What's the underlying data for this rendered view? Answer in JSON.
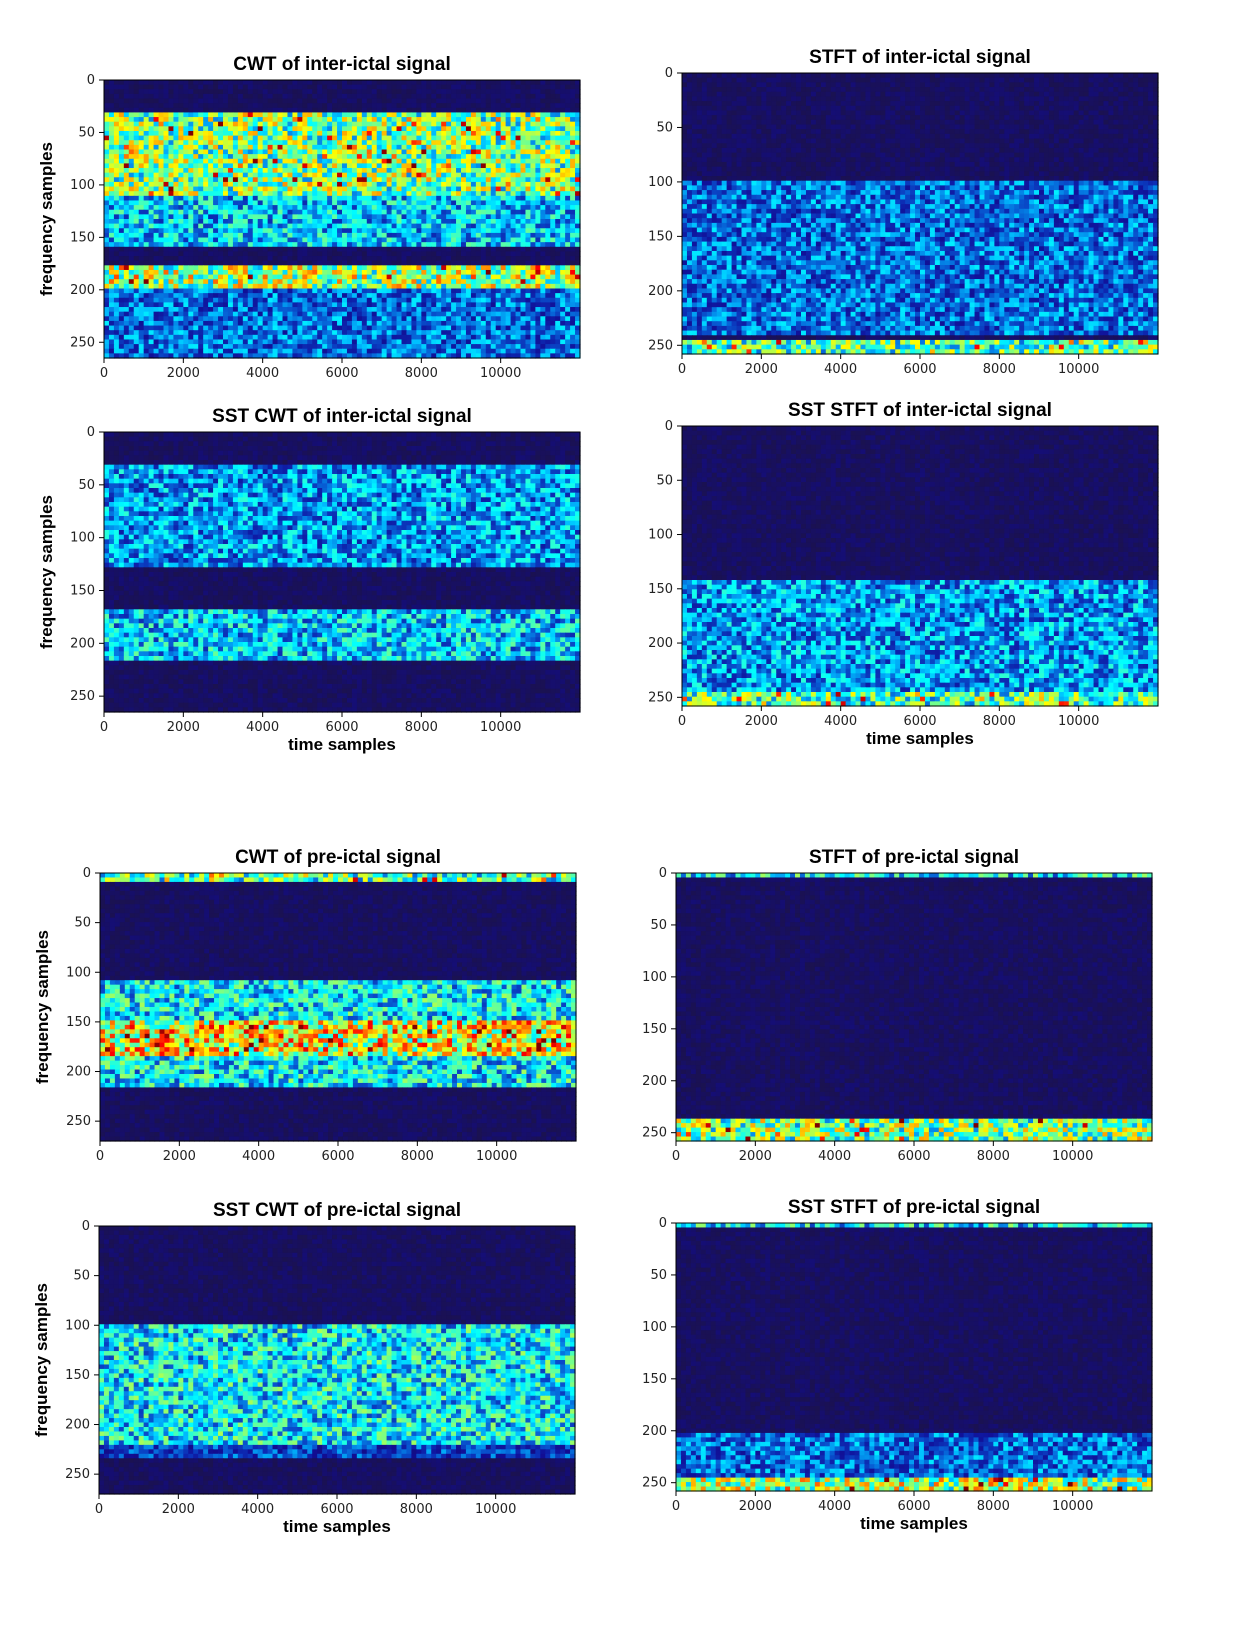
{
  "chart_data": [
    {
      "type": "heatmap",
      "id": "p0",
      "method": "CWT",
      "title": "CWT of inter-ictal signal",
      "ylabel": "frequency samples",
      "xlabel": "",
      "xlim": [
        0,
        12000
      ],
      "ylim": [
        265,
        0
      ],
      "xticks": [
        "0",
        "2000",
        "4000",
        "6000",
        "8000",
        "10000"
      ],
      "yticks": [
        "0",
        "50",
        "100",
        "150",
        "200",
        "250"
      ],
      "colormap": "jet",
      "bands": [
        {
          "freq_range": [
            30,
            110
          ],
          "level": 0.6
        },
        {
          "freq_range": [
            110,
            160
          ],
          "level": 0.4
        },
        {
          "freq_range": [
            175,
            200
          ],
          "level": 0.65
        },
        {
          "freq_range": [
            200,
            265
          ],
          "level": 0.3
        }
      ]
    },
    {
      "type": "heatmap",
      "id": "p1",
      "method": "STFT",
      "title": "STFT of inter-ictal signal",
      "ylabel": "",
      "xlabel": "",
      "xlim": [
        0,
        12000
      ],
      "ylim": [
        258,
        0
      ],
      "xticks": [
        "0",
        "2000",
        "4000",
        "6000",
        "8000",
        "10000"
      ],
      "yticks": [
        "0",
        "50",
        "100",
        "150",
        "200",
        "250"
      ],
      "colormap": "jet",
      "bands": [
        {
          "freq_range": [
            100,
            240
          ],
          "level": 0.3
        },
        {
          "freq_range": [
            245,
            258
          ],
          "level": 0.55
        }
      ]
    },
    {
      "type": "heatmap",
      "id": "p2",
      "method": "SST CWT",
      "title": "SST CWT of inter-ictal signal",
      "ylabel": "frequency samples",
      "xlabel": "time samples",
      "xlim": [
        0,
        12000
      ],
      "ylim": [
        265,
        0
      ],
      "xticks": [
        "0",
        "2000",
        "4000",
        "6000",
        "8000",
        "10000"
      ],
      "yticks": [
        "0",
        "50",
        "100",
        "150",
        "200",
        "250"
      ],
      "colormap": "jet",
      "bands": [
        {
          "freq_range": [
            30,
            130
          ],
          "level": 0.35
        },
        {
          "freq_range": [
            170,
            215
          ],
          "level": 0.4
        }
      ]
    },
    {
      "type": "heatmap",
      "id": "p3",
      "method": "SST STFT",
      "title": "SST STFT of inter-ictal signal",
      "ylabel": "",
      "xlabel": "time samples",
      "xlim": [
        0,
        12000
      ],
      "ylim": [
        258,
        0
      ],
      "xticks": [
        "0",
        "2000",
        "4000",
        "6000",
        "8000",
        "10000"
      ],
      "yticks": [
        "0",
        "50",
        "100",
        "150",
        "200",
        "250"
      ],
      "colormap": "jet",
      "bands": [
        {
          "freq_range": [
            140,
            245
          ],
          "level": 0.35
        },
        {
          "freq_range": [
            245,
            258
          ],
          "level": 0.55
        }
      ]
    },
    {
      "type": "heatmap",
      "id": "p4",
      "method": "CWT",
      "title": "CWT of pre-ictal signal",
      "ylabel": "frequency samples",
      "xlabel": "",
      "xlim": [
        0,
        12000
      ],
      "ylim": [
        270,
        0
      ],
      "xticks": [
        "0",
        "2000",
        "4000",
        "6000",
        "8000",
        "10000"
      ],
      "yticks": [
        "0",
        "50",
        "100",
        "150",
        "200",
        "250"
      ],
      "colormap": "jet",
      "bands": [
        {
          "freq_range": [
            0,
            8
          ],
          "level": 0.55
        },
        {
          "freq_range": [
            110,
            150
          ],
          "level": 0.45
        },
        {
          "freq_range": [
            150,
            185
          ],
          "level": 0.75
        },
        {
          "freq_range": [
            185,
            215
          ],
          "level": 0.45
        }
      ]
    },
    {
      "type": "heatmap",
      "id": "p5",
      "method": "STFT",
      "title": "STFT of pre-ictal signal",
      "ylabel": "",
      "xlabel": "",
      "xlim": [
        0,
        12000
      ],
      "ylim": [
        258,
        0
      ],
      "xticks": [
        "0",
        "2000",
        "4000",
        "6000",
        "8000",
        "10000"
      ],
      "yticks": [
        "0",
        "50",
        "100",
        "150",
        "200",
        "250"
      ],
      "colormap": "jet",
      "bands": [
        {
          "freq_range": [
            0,
            5
          ],
          "level": 0.45
        },
        {
          "freq_range": [
            235,
            258
          ],
          "level": 0.6
        }
      ]
    },
    {
      "type": "heatmap",
      "id": "p6",
      "method": "SST CWT",
      "title": "SST CWT of pre-ictal signal",
      "ylabel": "frequency samples",
      "xlabel": "time samples",
      "xlim": [
        0,
        12000
      ],
      "ylim": [
        270,
        0
      ],
      "xticks": [
        "0",
        "2000",
        "4000",
        "6000",
        "8000",
        "10000"
      ],
      "yticks": [
        "0",
        "50",
        "100",
        "150",
        "200",
        "250"
      ],
      "colormap": "jet",
      "bands": [
        {
          "freq_range": [
            100,
            220
          ],
          "level": 0.45
        },
        {
          "freq_range": [
            220,
            235
          ],
          "level": 0.25
        }
      ]
    },
    {
      "type": "heatmap",
      "id": "p7",
      "method": "SST STFT",
      "title": "SST STFT of pre-ictal signal",
      "ylabel": "",
      "xlabel": "time samples",
      "xlim": [
        0,
        12000
      ],
      "ylim": [
        258,
        0
      ],
      "xticks": [
        "0",
        "2000",
        "4000",
        "6000",
        "8000",
        "10000"
      ],
      "yticks": [
        "0",
        "50",
        "100",
        "150",
        "200",
        "250"
      ],
      "colormap": "jet",
      "bands": [
        {
          "freq_range": [
            0,
            3
          ],
          "level": 0.45
        },
        {
          "freq_range": [
            200,
            245
          ],
          "level": 0.3
        },
        {
          "freq_range": [
            245,
            258
          ],
          "level": 0.65
        }
      ]
    }
  ]
}
